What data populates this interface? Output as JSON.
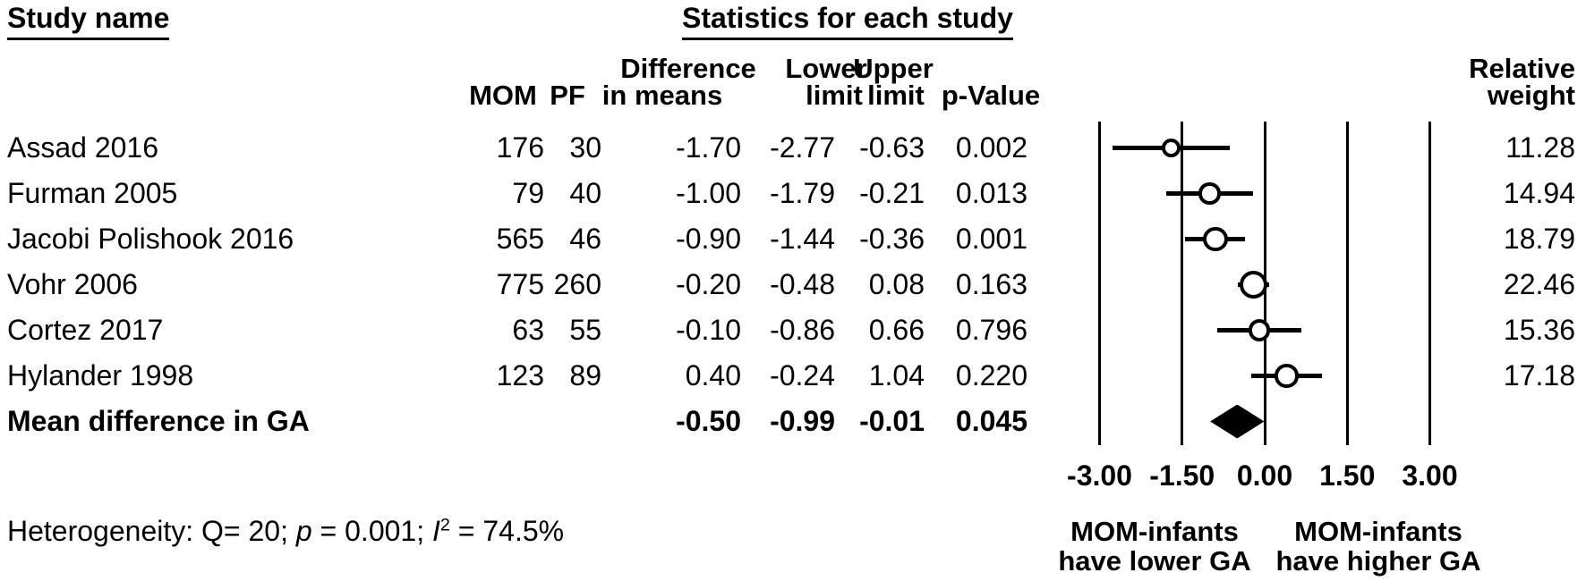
{
  "header": {
    "study_col_title": "Study name",
    "stats_title": "Statistics for each study",
    "columns_line1": {
      "difference": "Difference",
      "lower": "Lower",
      "upper": "Upper"
    },
    "columns_line2": {
      "mom": "MOM",
      "pf": "PF",
      "in_means": "in means",
      "lower_limit": "limit",
      "upper_limit": "limit",
      "p_value": "p-Value"
    },
    "relative_weight": {
      "line1": "Relative",
      "line2": "weight"
    }
  },
  "chart_data": {
    "type": "forest",
    "effect_measure": "Difference in means",
    "studies": [
      {
        "name": "Assad 2016",
        "mom": 176,
        "pf": 30,
        "diff": -1.7,
        "lower": -2.77,
        "upper": -0.63,
        "p": 0.002,
        "weight": 11.28
      },
      {
        "name": "Furman 2005",
        "mom": 79,
        "pf": 40,
        "diff": -1.0,
        "lower": -1.79,
        "upper": -0.21,
        "p": 0.013,
        "weight": 14.94
      },
      {
        "name": "Jacobi Polishook 2016",
        "mom": 565,
        "pf": 46,
        "diff": -0.9,
        "lower": -1.44,
        "upper": -0.36,
        "p": 0.001,
        "weight": 18.79
      },
      {
        "name": "Vohr 2006",
        "mom": 775,
        "pf": 260,
        "diff": -0.2,
        "lower": -0.48,
        "upper": 0.08,
        "p": 0.163,
        "weight": 22.46
      },
      {
        "name": "Cortez 2017",
        "mom": 63,
        "pf": 55,
        "diff": -0.1,
        "lower": -0.86,
        "upper": 0.66,
        "p": 0.796,
        "weight": 15.36
      },
      {
        "name": "Hylander 1998",
        "mom": 123,
        "pf": 89,
        "diff": 0.4,
        "lower": -0.24,
        "upper": 1.04,
        "p": 0.22,
        "weight": 17.18
      }
    ],
    "summary": {
      "name": "Mean difference in GA",
      "diff": -0.5,
      "lower": -0.99,
      "upper": -0.01,
      "p": 0.045
    },
    "axis": {
      "ticks": [
        -3.0,
        -1.5,
        0.0,
        1.5,
        3.0
      ],
      "tick_decimals": 2,
      "xlim": [
        -3.75,
        3.75
      ],
      "grid": true
    },
    "direction_labels": {
      "left_line1": "MOM-infants",
      "left_line2": "have lower GA",
      "right_line1": "MOM-infants",
      "right_line2": "have higher GA"
    },
    "footer": {
      "het_prefix": "Heterogeneity: Q= 20; ",
      "het_p_symbol": "p",
      "het_mid": " = 0.001; ",
      "het_i_symbol": "I",
      "het_i_exp": "2",
      "het_suffix": " = 74.5%"
    },
    "marker_color": "#000000",
    "background_color": "#ffffff"
  }
}
